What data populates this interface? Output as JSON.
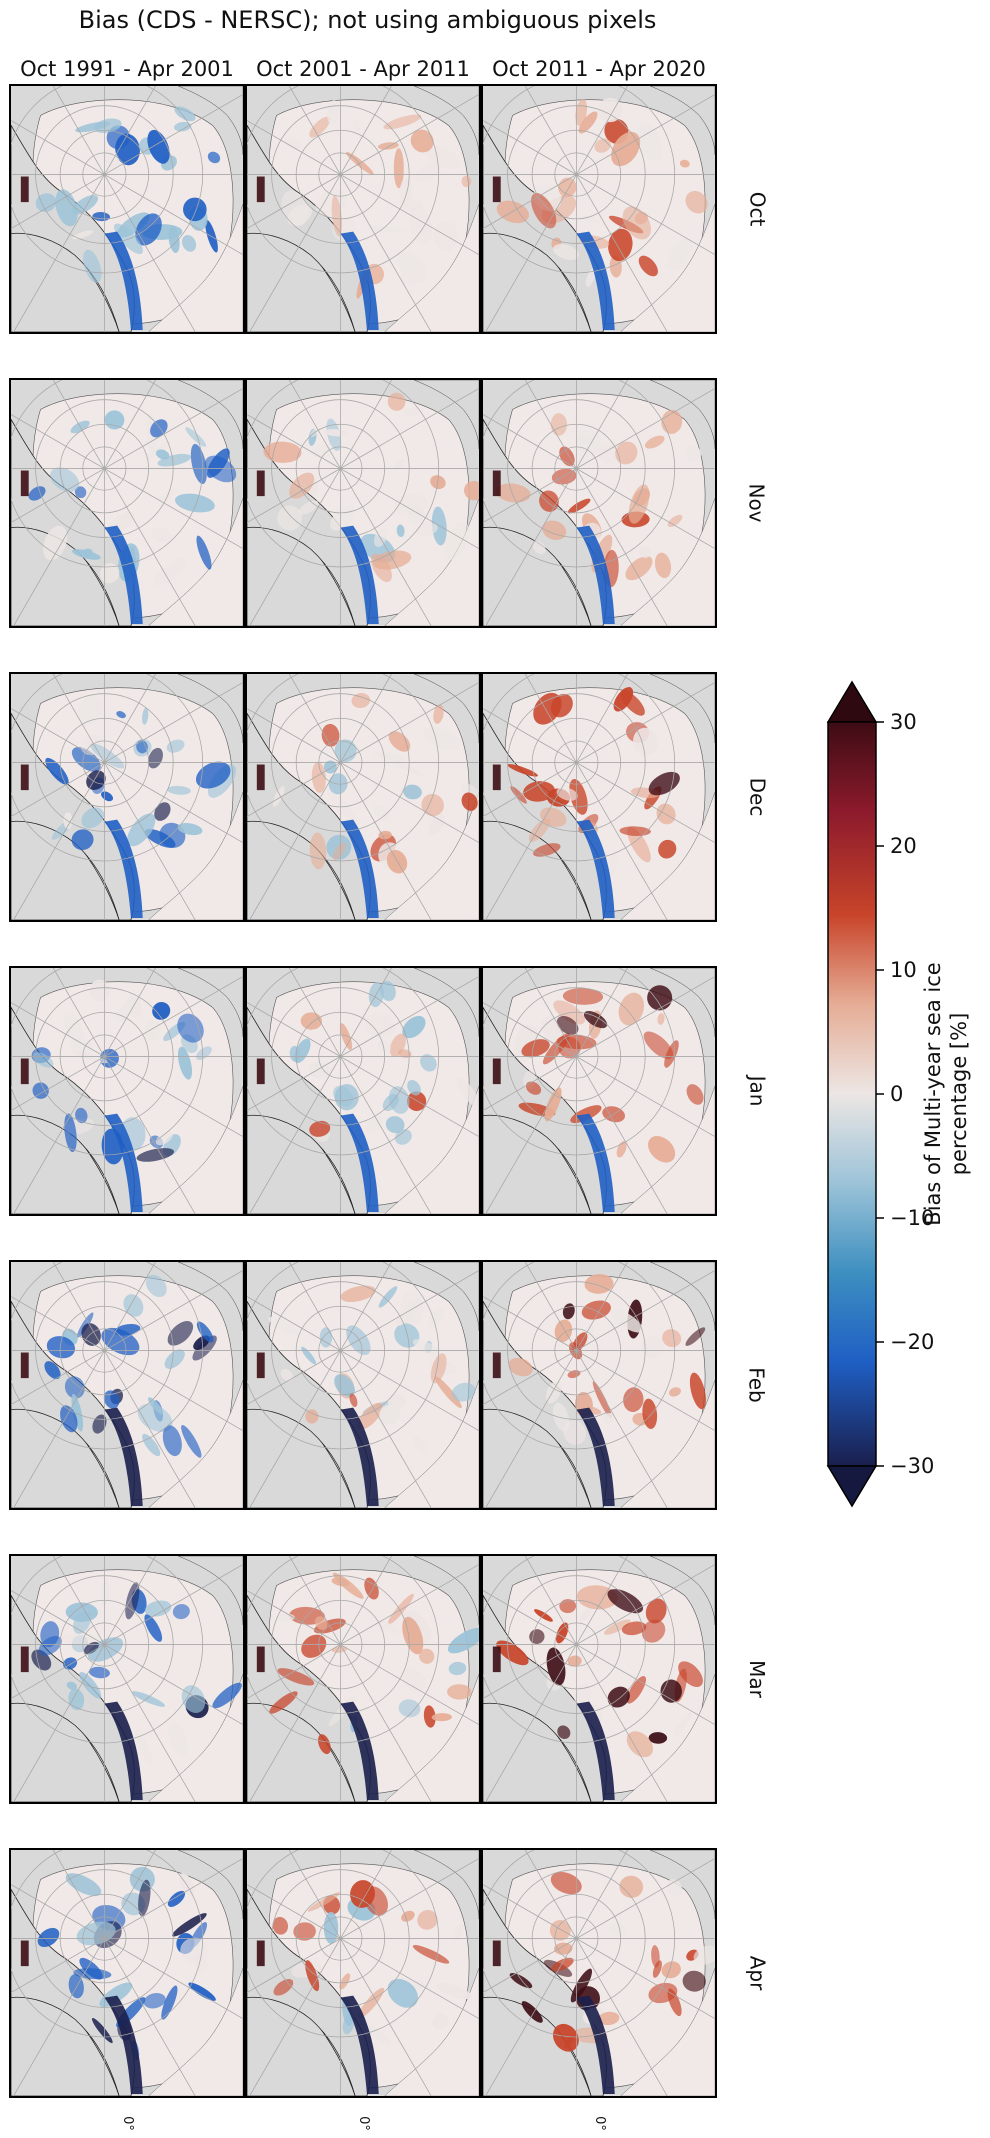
{
  "figure": {
    "title": "Bias (CDS - NERSC); not using ambiguous pixels"
  },
  "chart_data": {
    "type": "heatmap",
    "title": "Bias (CDS - NERSC); not using ambiguous pixels",
    "columns": [
      "Oct 1991 - Apr 2001",
      "Oct 2001 - Apr 2011",
      "Oct 2011 - Apr 2020"
    ],
    "rows": [
      "Oct",
      "Nov",
      "Dec",
      "Jan",
      "Feb",
      "Mar",
      "Apr"
    ],
    "longitude_tick_labels": [
      "0°",
      "0°",
      "0°"
    ],
    "colorbar": {
      "label_line1": "Bias of Multi-year sea ice",
      "label_line2": "percentage [%]",
      "min": -30,
      "max": 30,
      "extend": "both",
      "ticks": [
        30,
        20,
        10,
        0,
        -10,
        -20,
        -30
      ],
      "tick_labels": [
        "30",
        "20",
        "10",
        "0",
        "−10",
        "−20",
        "−30"
      ]
    },
    "colors": {
      "neg_max": "#1a1f4d",
      "neg_strong": "#1f5fc4",
      "neg_light": "#9cc3d8",
      "zero": "#ece6e4",
      "pos_light": "#e6ad96",
      "pos_strong": "#c8452a",
      "pos_max": "#3d0c14",
      "land": "#d9d9d9",
      "ocean": "#f1e9e8",
      "grid": "#a8a8a8"
    },
    "map_style": "Arctic north polar stereographic; land grey, ocean near-zero bias"
  }
}
